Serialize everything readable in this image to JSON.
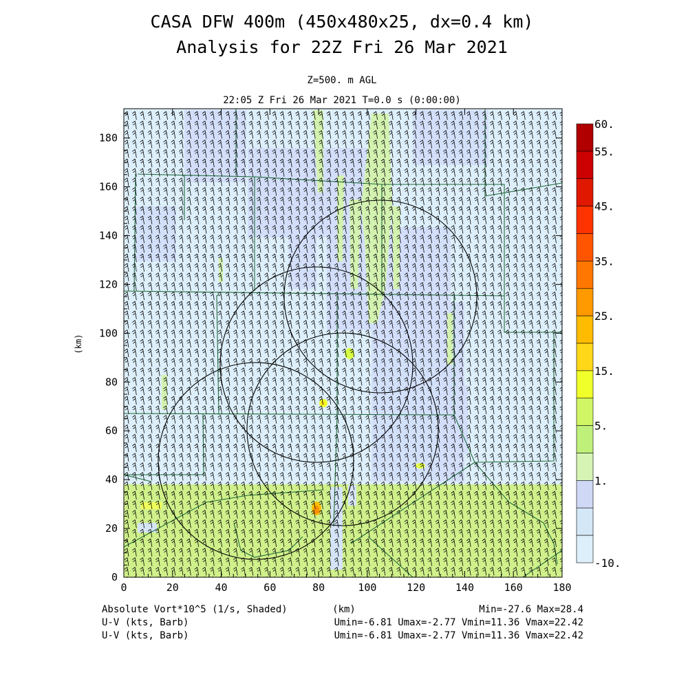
{
  "title": {
    "line1": "CASA DFW 400m (450x480x25, dx=0.4 km)",
    "line2": "Analysis for 22Z Fri 26 Mar 2021"
  },
  "subtitle": {
    "level": "Z=500. m AGL",
    "time": "22:05 Z Fri 26 Mar 2021   T=0.0 s (0:00:00)"
  },
  "footer": {
    "field1": "Absolute Vort*10^5 (1/s, Shaded)",
    "field2": "U-V (kts, Barb)",
    "field3": "U-V (kts, Barb)",
    "xunit": "(km)",
    "stats1": "Min=-27.6 Max=28.4",
    "stats2": "Umin=-6.81 Umax=-2.77 Vmin=11.36 Vmax=22.42",
    "stats3": "Umin=-6.81 Umax=-2.77 Vmin=11.36 Vmax=22.42"
  },
  "chart_data": {
    "type": "heatmap",
    "variable": "Absolute Vort*10^5 (1/s, Shaded)",
    "xlabel": "(km)",
    "ylabel": "(km)",
    "xlim": [
      0,
      180
    ],
    "ylim": [
      0,
      192
    ],
    "xticks": [
      0,
      20,
      40,
      60,
      80,
      100,
      120,
      140,
      160,
      180
    ],
    "yticks": [
      0,
      20,
      40,
      60,
      80,
      100,
      120,
      140,
      160,
      180
    ],
    "colorbar": {
      "labels": [
        "60.",
        "55.",
        "45.",
        "35.",
        "25.",
        "15.",
        "5.",
        "1.",
        "-10."
      ],
      "colors": [
        "#b00000",
        "#cc0000",
        "#e01800",
        "#ff3300",
        "#ff5500",
        "#ff7700",
        "#ff9900",
        "#ffbb00",
        "#ffd81a",
        "#f0ff2a",
        "#d0f565",
        "#bff07a",
        "#d6f5b4",
        "#cfd8f5",
        "#d4e7f7",
        "#ddeffa"
      ]
    },
    "regions": [
      {
        "desc": "background",
        "level": "-10 to 1",
        "color": "#ddeffa"
      },
      {
        "desc": "southern band",
        "y": [
          0,
          38
        ],
        "level": "5 to 10",
        "color": "#cff08a"
      },
      {
        "desc": "northern plume",
        "x": [
          92,
          112
        ],
        "y": [
          95,
          190
        ],
        "level": "5 to 10",
        "color": "#d6f5b4"
      }
    ],
    "max_spots": [
      {
        "x": 79,
        "y": 28,
        "level": "25 to 35"
      },
      {
        "x": 82,
        "y": 70,
        "level": "15 to 25"
      },
      {
        "x": 93,
        "y": 91,
        "level": "15 to 20"
      }
    ],
    "stats": {
      "min": -27.6,
      "max": 28.4
    },
    "wind": {
      "u_min": -6.81,
      "u_max": -2.77,
      "v_min": 11.36,
      "v_max": 22.42,
      "units": "kts"
    },
    "radar_rings": [
      {
        "center_x": 54,
        "center_y": 47,
        "radius": 38
      },
      {
        "center_x": 72,
        "center_y": 87,
        "radius": 39
      },
      {
        "center_x": 107,
        "center_y": 115,
        "radius": 39
      },
      {
        "center_x": 90,
        "center_y": 66,
        "radius": 38
      }
    ]
  }
}
